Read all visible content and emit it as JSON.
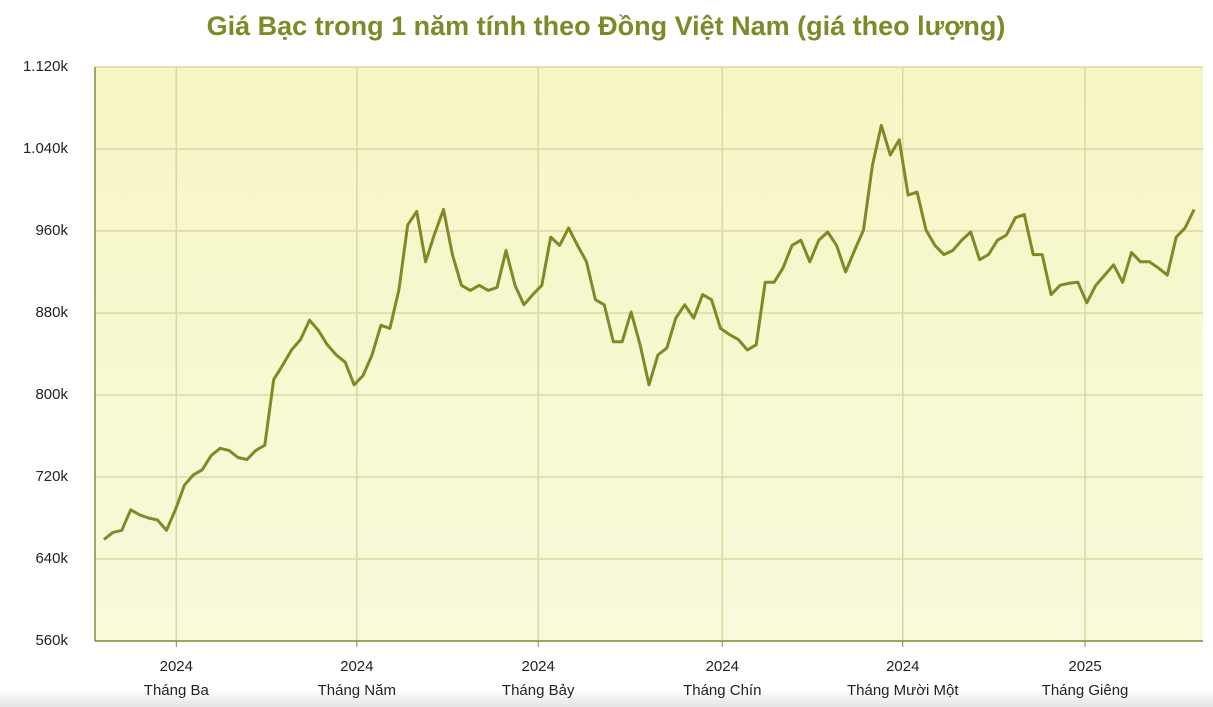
{
  "chart_data": {
    "type": "line",
    "title": "Giá Bạc trong 1 năm tính theo Đồng Việt Nam (giá theo lượng)",
    "series": [
      {
        "color": "#7f8a26",
        "values": [
          659,
          666,
          668,
          688,
          683,
          680,
          678,
          668,
          688,
          712,
          722,
          727,
          741,
          748,
          746,
          739,
          737,
          746,
          751,
          815,
          829,
          844,
          854,
          873,
          863,
          849,
          839,
          832,
          810,
          819,
          839,
          868,
          865,
          902,
          966,
          979,
          930,
          957,
          981,
          937,
          907,
          902,
          907,
          902,
          905,
          941,
          907,
          888,
          898,
          907,
          954,
          946,
          963,
          946,
          930,
          893,
          888,
          852,
          852,
          881,
          849,
          810,
          839,
          846,
          875,
          888,
          875,
          898,
          893,
          865,
          859,
          854,
          844,
          849,
          910,
          910,
          924,
          946,
          951,
          930,
          951,
          959,
          946,
          920,
          941,
          961,
          1024,
          1063,
          1034,
          1049,
          995,
          998,
          961,
          946,
          937,
          941,
          951,
          959,
          932,
          937,
          951,
          956,
          973,
          976,
          937,
          937,
          898,
          907,
          909,
          910,
          890,
          907,
          917,
          927,
          910,
          939,
          930,
          930,
          924,
          917,
          954,
          963,
          981
        ]
      }
    ],
    "xlim": [
      -1,
      123
    ],
    "xticks": [
      {
        "value": 8.1,
        "label": "Tháng Ba",
        "year": "2024"
      },
      {
        "value": 28.3,
        "label": "Tháng Năm",
        "year": "2024"
      },
      {
        "value": 48.6,
        "label": "Tháng Bảy",
        "year": "2024"
      },
      {
        "value": 69.2,
        "label": "Tháng Chín",
        "year": "2024"
      },
      {
        "value": 89.4,
        "label": "Tháng Mười Một",
        "year": "2024"
      },
      {
        "value": 109.8,
        "label": "Tháng Giêng",
        "year": "2025"
      }
    ],
    "ylim": [
      560,
      1120
    ],
    "yticks": [
      {
        "value": 560,
        "label": "560k"
      },
      {
        "value": 640,
        "label": "640k"
      },
      {
        "value": 720,
        "label": "720k"
      },
      {
        "value": 800,
        "label": "800k"
      },
      {
        "value": 880,
        "label": "880k"
      },
      {
        "value": 960,
        "label": "960k"
      },
      {
        "value": 1040,
        "label": "1.040k"
      },
      {
        "value": 1120,
        "label": "1.120k"
      }
    ],
    "grid": true
  }
}
